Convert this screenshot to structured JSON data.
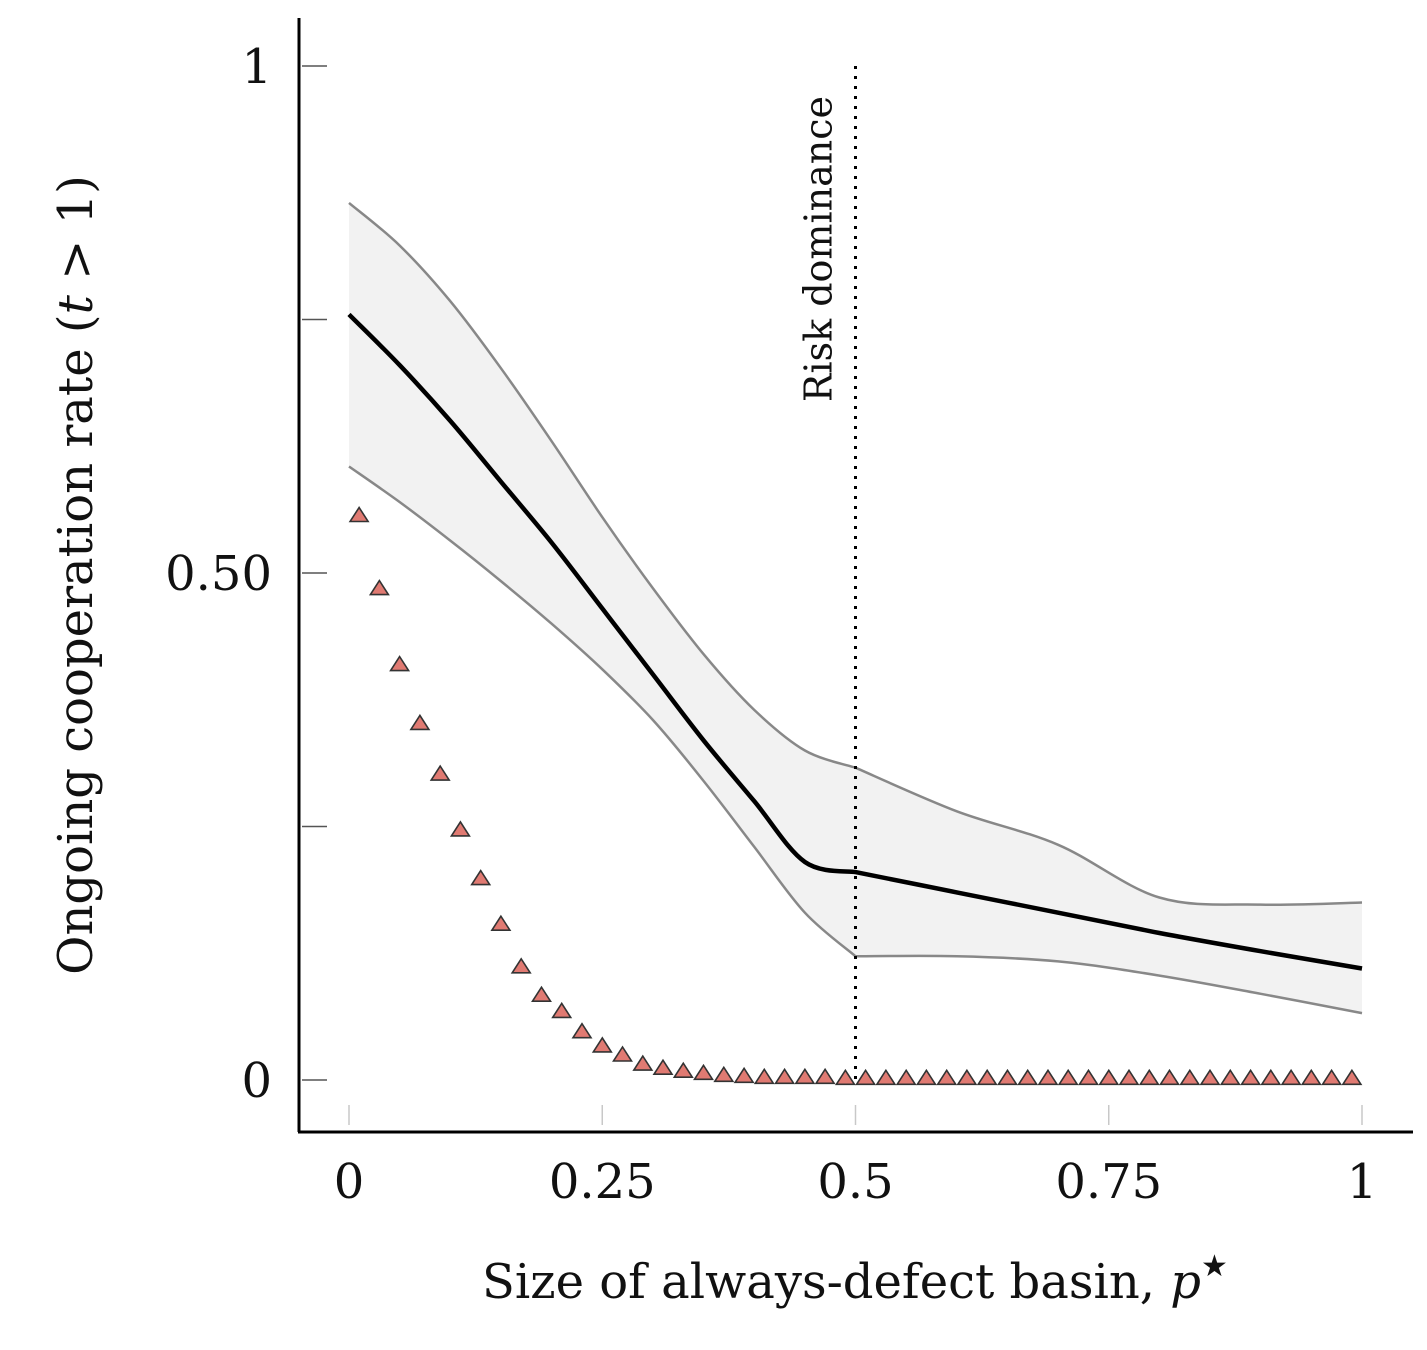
{
  "chart_data": {
    "type": "line",
    "xlabel": "Size of always-defect basin, ",
    "xlabel_var": "p",
    "xlabel_sup": "★",
    "ylabel": "Ongoing cooperation rate (",
    "ylabel_var": "t",
    "ylabel_tail": " > 1)",
    "xlim": [
      0,
      1
    ],
    "ylim": [
      0,
      1
    ],
    "x_ticks": [
      {
        "value": 0,
        "label": "0"
      },
      {
        "value": 0.25,
        "label": "0.25"
      },
      {
        "value": 0.5,
        "label": "0.5"
      },
      {
        "value": 0.75,
        "label": "0.75"
      },
      {
        "value": 1,
        "label": "1"
      }
    ],
    "y_ticks": [
      {
        "value": 0,
        "label": "0"
      },
      {
        "value": 0.25,
        "label": ""
      },
      {
        "value": 0.5,
        "label": "0.50"
      },
      {
        "value": 0.75,
        "label": ""
      },
      {
        "value": 1,
        "label": "1"
      }
    ],
    "grid": false,
    "annotation": {
      "x": 0.5,
      "label": "Risk dominance",
      "style": "dotted"
    },
    "colors": {
      "mean_line": "#000000",
      "band_fill": "#f2f2f2",
      "band_edge": "#888888",
      "marker_fill": "#e07a72",
      "marker_edge": "#333333"
    },
    "series": [
      {
        "kind": "line",
        "x": [
          0,
          0.05,
          0.1,
          0.15,
          0.2,
          0.25,
          0.3,
          0.35,
          0.4,
          0.45,
          0.5,
          0.6,
          0.7,
          0.8,
          0.9,
          1
        ],
        "y": [
          0.755,
          0.705,
          0.65,
          0.59,
          0.53,
          0.465,
          0.4,
          0.335,
          0.275,
          0.215,
          0.205,
          0.185,
          0.165,
          0.145,
          0.127,
          0.11
        ],
        "lower": [
          0.605,
          0.57,
          0.532,
          0.492,
          0.45,
          0.405,
          0.355,
          0.295,
          0.23,
          0.165,
          0.122,
          0.122,
          0.117,
          0.103,
          0.085,
          0.066
        ],
        "upper": [
          0.865,
          0.823,
          0.768,
          0.702,
          0.63,
          0.555,
          0.485,
          0.42,
          0.365,
          0.325,
          0.308,
          0.265,
          0.232,
          0.18,
          0.173,
          0.175
        ]
      },
      {
        "kind": "scatter",
        "marker": "triangle",
        "x": [
          0.01,
          0.03,
          0.05,
          0.07,
          0.09,
          0.11,
          0.13,
          0.15,
          0.17,
          0.19,
          0.21,
          0.23,
          0.25,
          0.27,
          0.29,
          0.31,
          0.33,
          0.35,
          0.37,
          0.39,
          0.41,
          0.43,
          0.45,
          0.47,
          0.49,
          0.51,
          0.53,
          0.55,
          0.57,
          0.59,
          0.61,
          0.63,
          0.65,
          0.67,
          0.69,
          0.71,
          0.73,
          0.75,
          0.77,
          0.79,
          0.81,
          0.83,
          0.85,
          0.87,
          0.89,
          0.91,
          0.93,
          0.95,
          0.97,
          0.99
        ],
        "y": [
          0.555,
          0.483,
          0.408,
          0.35,
          0.3,
          0.245,
          0.197,
          0.152,
          0.11,
          0.082,
          0.066,
          0.046,
          0.032,
          0.023,
          0.014,
          0.01,
          0.007,
          0.005,
          0.003,
          0.002,
          0.001,
          0.001,
          0.001,
          0.001,
          0.0,
          0.0,
          0.0,
          0.0,
          0.0,
          0.0,
          0.0,
          0.0,
          0.0,
          0.0,
          0.0,
          0.0,
          0.0,
          0.0,
          0.0,
          0.0,
          0.0,
          0.0,
          0.0,
          0.0,
          0.0,
          0.0,
          0.0,
          0.0,
          0.0,
          0.0
        ]
      }
    ]
  }
}
